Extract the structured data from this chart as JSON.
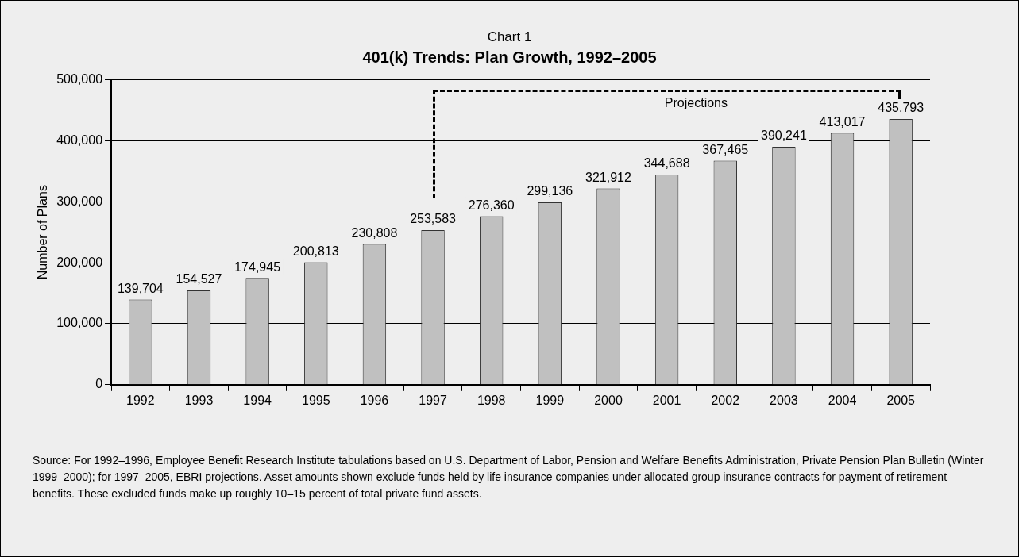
{
  "chart_data": {
    "type": "bar",
    "title": "Chart 1",
    "subtitle": "401(k) Trends: Plan Growth, 1992–2005",
    "ylabel": "Number of Plans",
    "categories": [
      "1992",
      "1993",
      "1994",
      "1995",
      "1996",
      "1997",
      "1998",
      "1999",
      "2000",
      "2001",
      "2002",
      "2003",
      "2004",
      "2005"
    ],
    "values": [
      139704,
      154527,
      174945,
      200813,
      230808,
      253583,
      276360,
      299136,
      321912,
      344688,
      367465,
      390241,
      413017,
      435793
    ],
    "value_labels": [
      "139,704",
      "154,527",
      "174,945",
      "200,813",
      "230,808",
      "253,583",
      "276,360",
      "299,136",
      "321,912",
      "344,688",
      "367,465",
      "390,241",
      "413,017",
      "435,793"
    ],
    "color": "#c0c0c0",
    "ylim": [
      0,
      500000
    ],
    "yticks": [
      0,
      {
        "value": 100000,
        "label": "100,000"
      },
      {
        "value": 200000,
        "label": "200,000"
      },
      {
        "value": 300000,
        "label": "300,000"
      },
      {
        "value": 400000,
        "label": "400,000"
      },
      {
        "value": 500000,
        "label": "500,000"
      }
    ],
    "grid": "y",
    "annotations": [
      "Projections",
      "Source: For 1992–1996, Employee Benefit Research Institute tabulations based on U.S. Department of Labor, Pension and Welfare Benefits Administration, Private Pension Plan Bulletin (Winter 1999–2000); for 1997–2005, EBRI projections. Asset amounts shown exclude funds held by life insurance companies under allocated group insurance contracts for payment of retirement benefits. These excluded funds make up roughly 10–15 percent of total private fund assets."
    ]
  }
}
